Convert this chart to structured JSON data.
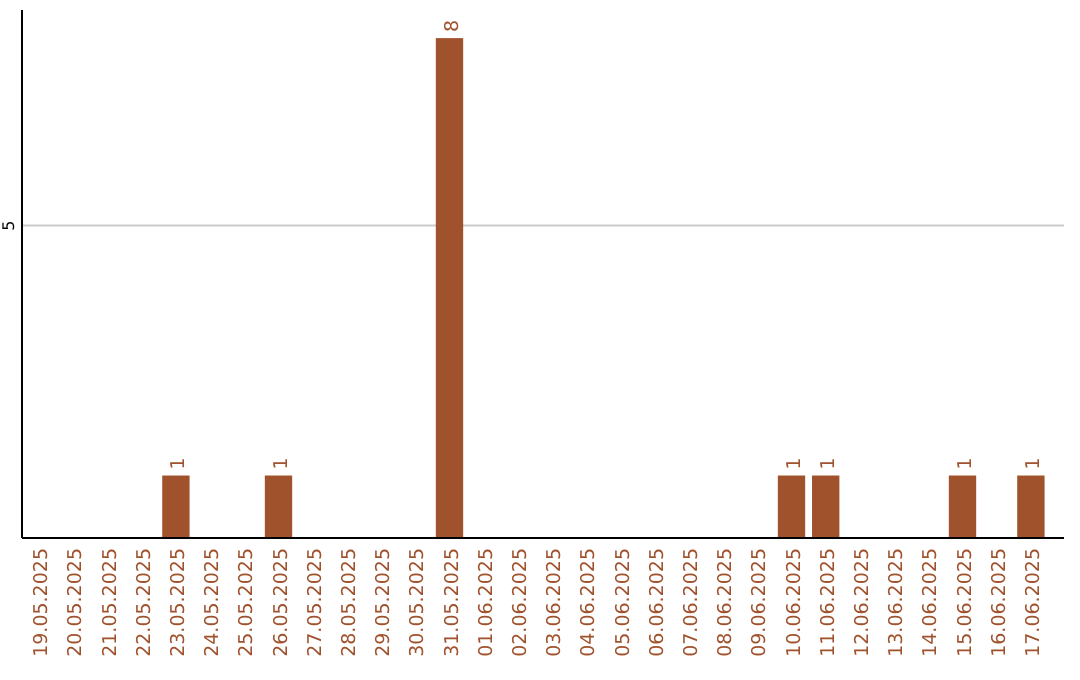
{
  "chart_data": {
    "type": "bar",
    "categories": [
      "19.05.2025",
      "20.05.2025",
      "21.05.2025",
      "22.05.2025",
      "23.05.2025",
      "24.05.2025",
      "25.05.2025",
      "26.05.2025",
      "27.05.2025",
      "28.05.2025",
      "29.05.2025",
      "30.05.2025",
      "31.05.2025",
      "01.06.2025",
      "02.06.2025",
      "03.06.2025",
      "04.06.2025",
      "05.06.2025",
      "06.06.2025",
      "07.06.2025",
      "08.06.2025",
      "09.06.2025",
      "10.06.2025",
      "11.06.2025",
      "12.06.2025",
      "13.06.2025",
      "14.06.2025",
      "15.06.2025",
      "16.06.2025",
      "17.06.2025"
    ],
    "values": [
      0,
      0,
      0,
      0,
      1,
      0,
      0,
      1,
      0,
      0,
      0,
      0,
      8,
      0,
      0,
      0,
      0,
      0,
      0,
      0,
      0,
      0,
      1,
      1,
      0,
      0,
      0,
      1,
      0,
      1
    ],
    "value_labels": [
      null,
      null,
      null,
      null,
      "1",
      null,
      null,
      "1",
      null,
      null,
      null,
      null,
      "8",
      null,
      null,
      null,
      null,
      null,
      null,
      null,
      null,
      null,
      "1",
      "1",
      null,
      null,
      null,
      "1",
      null,
      "1"
    ],
    "color": "#a0522d",
    "ylim": [
      0,
      8.45
    ],
    "yticks": [
      5
    ],
    "grid": "y"
  }
}
